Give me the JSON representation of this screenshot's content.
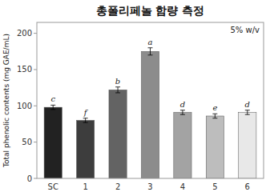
{
  "chart_data": {
    "type": "bar",
    "title": "총폴리페놀 함량 측정",
    "ylabel": "Total phenolic contents (mg GAE/mL)",
    "categories": [
      "SC",
      "1",
      "2",
      "3",
      "4",
      "5",
      "6"
    ],
    "values": [
      98,
      80,
      122,
      175,
      91,
      86,
      91
    ],
    "errors": [
      3,
      3,
      4,
      5,
      3,
      3,
      3
    ],
    "colors": [
      "#222222",
      "#3d3d3d",
      "#636363",
      "#8c8c8c",
      "#a3a3a3",
      "#bdbdbd",
      "#e8e8e8"
    ],
    "letters": [
      "c",
      "f",
      "b",
      "a",
      "d",
      "e",
      "d"
    ],
    "annotation": "5% w/v",
    "ylim": [
      0,
      215
    ],
    "yticks": [
      0,
      50,
      100,
      150,
      200
    ],
    "grid": false
  }
}
